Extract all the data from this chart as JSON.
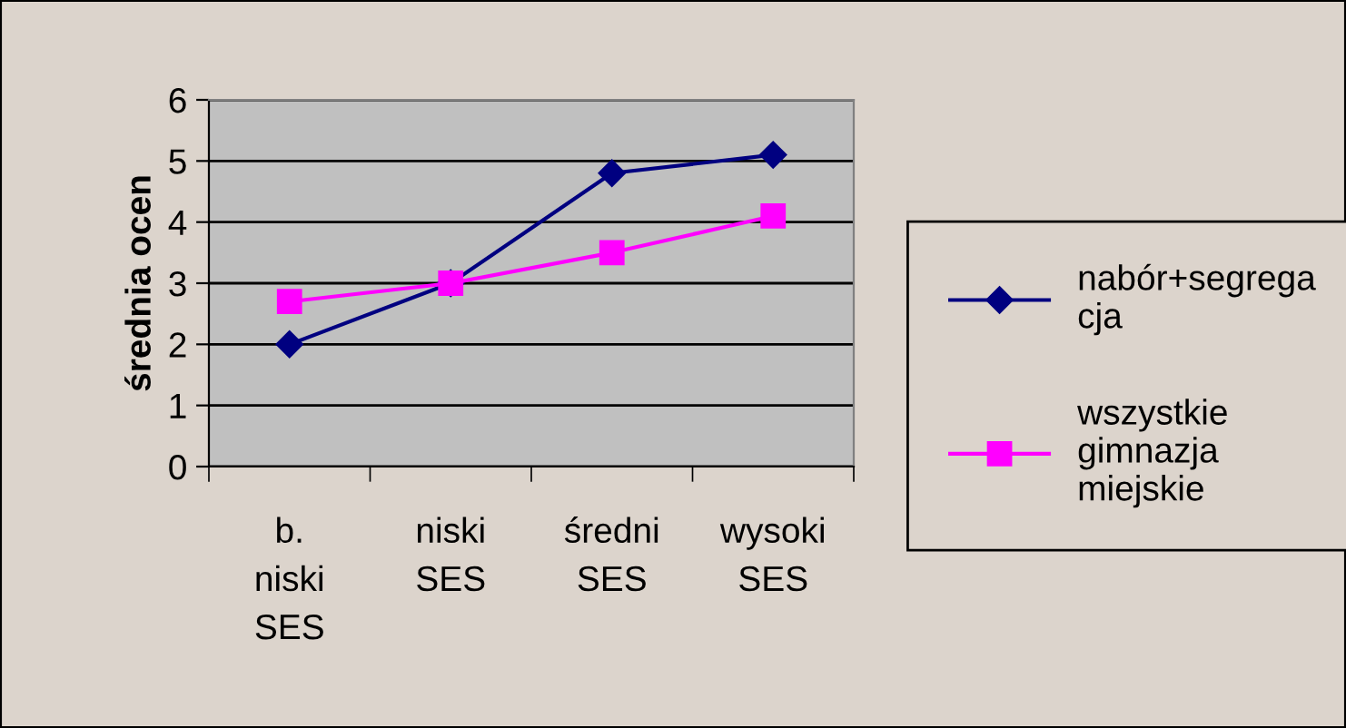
{
  "chart_data": {
    "type": "line",
    "ylabel": "średnia ocen",
    "categories": [
      "b.\nniski\nSES",
      "niski\nSES",
      "średni\nSES",
      "wysoki\nSES"
    ],
    "series": [
      {
        "name": "nabór+segrega\ncja",
        "color": "#000080",
        "marker": "diamond",
        "values": [
          2.0,
          3.0,
          4.8,
          5.1
        ]
      },
      {
        "name": "wszystkie\ngimnazja\nmiejskie",
        "color": "#ff00ff",
        "marker": "square",
        "values": [
          2.7,
          3.0,
          3.5,
          4.1
        ]
      }
    ],
    "ylim": [
      0,
      6
    ],
    "yticks": [
      0,
      1,
      2,
      3,
      4,
      5,
      6
    ],
    "grid": "y",
    "legend": "right"
  }
}
